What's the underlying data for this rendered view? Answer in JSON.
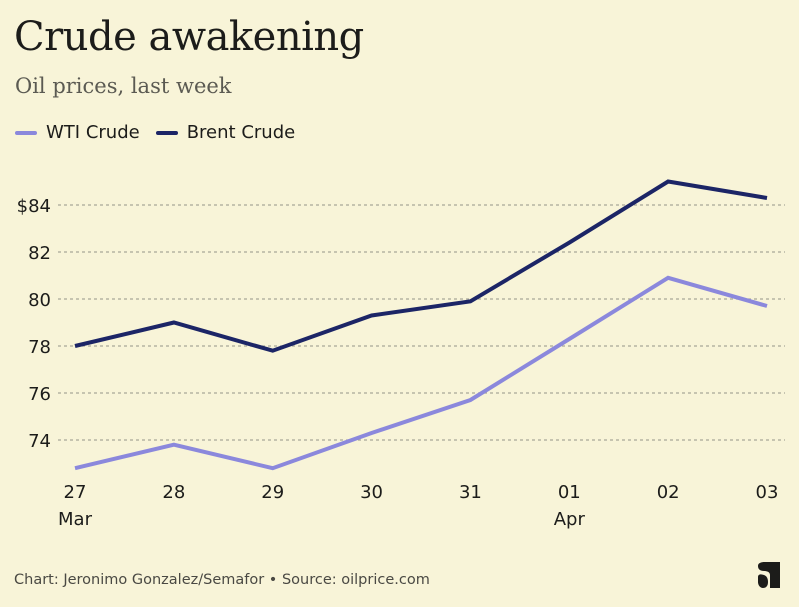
{
  "header": {
    "title": "Crude awakening",
    "subtitle": "Oil prices, last week"
  },
  "footer": {
    "credit": "Chart: Jeronimo Gonzalez/Semafor • Source: oilprice.com",
    "logo_icon": "semafor-logo-icon"
  },
  "chart_data": {
    "type": "line",
    "title": "Crude awakening",
    "subtitle": "Oil prices, last week",
    "xlabel": "",
    "ylabel": "",
    "x": [
      "27 Mar",
      "28 Mar",
      "29 Mar",
      "30 Mar",
      "31 Mar",
      "01 Apr",
      "02 Apr",
      "03 Apr"
    ],
    "x_tick_labels": [
      {
        "day": "27",
        "month": "Mar"
      },
      {
        "day": "28",
        "month": ""
      },
      {
        "day": "29",
        "month": ""
      },
      {
        "day": "30",
        "month": ""
      },
      {
        "day": "31",
        "month": ""
      },
      {
        "day": "01",
        "month": "Apr"
      },
      {
        "day": "02",
        "month": ""
      },
      {
        "day": "03",
        "month": ""
      }
    ],
    "y_ticks": [
      74,
      76,
      78,
      80,
      82,
      84
    ],
    "y_tick_labels": [
      "74",
      "76",
      "78",
      "80",
      "82",
      "$84"
    ],
    "ylim": [
      72,
      85.5
    ],
    "grid": "horizontal-dashed",
    "legend_position": "top-left",
    "series": [
      {
        "name": "WTI Crude",
        "color": "#8b88dc",
        "values": [
          72.8,
          73.8,
          72.8,
          74.3,
          75.7,
          78.3,
          80.9,
          79.7
        ]
      },
      {
        "name": "Brent Crude",
        "color": "#1c2566",
        "values": [
          78.0,
          79.0,
          77.8,
          79.3,
          79.9,
          82.4,
          85.0,
          84.3
        ]
      }
    ]
  }
}
